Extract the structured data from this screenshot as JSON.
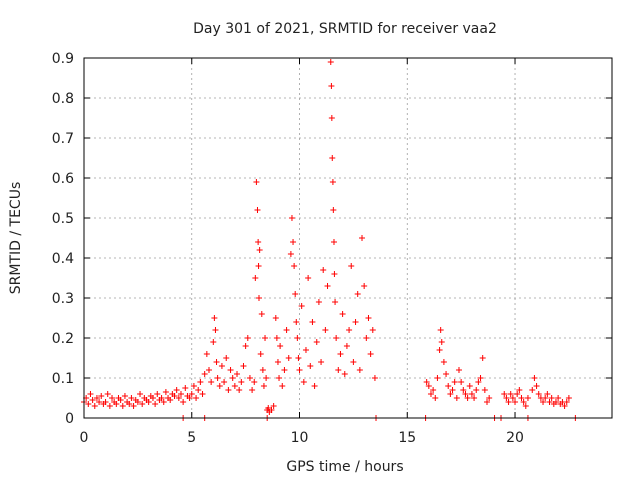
{
  "chart_data": {
    "type": "scatter",
    "title": "Day 301 of 2021, SRMTID for receiver vaa2",
    "xlabel": "GPS time / hours",
    "ylabel": "SRMTID / TECUs",
    "xlim": [
      0,
      24.5
    ],
    "ylim": [
      0,
      0.9
    ],
    "xticks": [
      0,
      5,
      10,
      15,
      20
    ],
    "xtick_labels": [
      "0",
      "5",
      "10",
      "15",
      "20"
    ],
    "yticks": [
      0,
      0.1,
      0.2,
      0.3,
      0.4,
      0.5,
      0.6,
      0.7,
      0.8,
      0.9
    ],
    "ytick_labels": [
      "0",
      "0.1",
      "0.2",
      "0.3",
      "0.4",
      "0.5",
      "0.6",
      "0.7",
      "0.8",
      "0.9"
    ],
    "grid": true,
    "marker": "+",
    "color": "#ff0000",
    "series": [
      {
        "name": "SRMTID",
        "points": [
          [
            0.0,
            0.04
          ],
          [
            0.1,
            0.05
          ],
          [
            0.2,
            0.035
          ],
          [
            0.3,
            0.06
          ],
          [
            0.4,
            0.045
          ],
          [
            0.5,
            0.03
          ],
          [
            0.6,
            0.05
          ],
          [
            0.7,
            0.04
          ],
          [
            0.8,
            0.055
          ],
          [
            0.9,
            0.035
          ],
          [
            1.0,
            0.04
          ],
          [
            1.1,
            0.06
          ],
          [
            1.2,
            0.03
          ],
          [
            1.3,
            0.05
          ],
          [
            1.4,
            0.04
          ],
          [
            1.5,
            0.035
          ],
          [
            1.6,
            0.05
          ],
          [
            1.7,
            0.045
          ],
          [
            1.8,
            0.03
          ],
          [
            1.9,
            0.055
          ],
          [
            2.0,
            0.04
          ],
          [
            2.1,
            0.035
          ],
          [
            2.2,
            0.05
          ],
          [
            2.3,
            0.03
          ],
          [
            2.4,
            0.045
          ],
          [
            2.5,
            0.04
          ],
          [
            2.6,
            0.06
          ],
          [
            2.7,
            0.035
          ],
          [
            2.8,
            0.05
          ],
          [
            2.9,
            0.045
          ],
          [
            3.0,
            0.04
          ],
          [
            3.1,
            0.055
          ],
          [
            3.2,
            0.05
          ],
          [
            3.3,
            0.035
          ],
          [
            3.4,
            0.06
          ],
          [
            3.5,
            0.045
          ],
          [
            3.6,
            0.05
          ],
          [
            3.7,
            0.04
          ],
          [
            3.8,
            0.065
          ],
          [
            3.9,
            0.05
          ],
          [
            4.0,
            0.045
          ],
          [
            4.1,
            0.06
          ],
          [
            4.2,
            0.055
          ],
          [
            4.3,
            0.07
          ],
          [
            4.4,
            0.05
          ],
          [
            4.5,
            0.06
          ],
          [
            4.6,
            0.04
          ],
          [
            4.7,
            0.075
          ],
          [
            4.8,
            0.055
          ],
          [
            4.9,
            0.05
          ],
          [
            5.0,
            0.06
          ],
          [
            5.1,
            0.08
          ],
          [
            5.2,
            0.05
          ],
          [
            5.3,
            0.07
          ],
          [
            5.4,
            0.09
          ],
          [
            5.5,
            0.06
          ],
          [
            5.6,
            0.11
          ],
          [
            5.7,
            0.16
          ],
          [
            5.8,
            0.12
          ],
          [
            5.9,
            0.09
          ],
          [
            6.0,
            0.19
          ],
          [
            6.05,
            0.25
          ],
          [
            6.1,
            0.22
          ],
          [
            6.15,
            0.14
          ],
          [
            6.2,
            0.1
          ],
          [
            6.3,
            0.08
          ],
          [
            6.4,
            0.13
          ],
          [
            6.5,
            0.09
          ],
          [
            6.6,
            0.15
          ],
          [
            6.7,
            0.07
          ],
          [
            6.8,
            0.12
          ],
          [
            6.9,
            0.1
          ],
          [
            7.0,
            0.08
          ],
          [
            7.1,
            0.11
          ],
          [
            7.2,
            0.07
          ],
          [
            7.3,
            0.09
          ],
          [
            7.4,
            0.13
          ],
          [
            7.5,
            0.18
          ],
          [
            7.6,
            0.2
          ],
          [
            7.7,
            0.1
          ],
          [
            7.8,
            0.07
          ],
          [
            7.9,
            0.09
          ],
          [
            7.95,
            0.35
          ],
          [
            8.0,
            0.59
          ],
          [
            8.05,
            0.52
          ],
          [
            8.08,
            0.44
          ],
          [
            8.1,
            0.38
          ],
          [
            8.12,
            0.3
          ],
          [
            8.15,
            0.42
          ],
          [
            8.2,
            0.16
          ],
          [
            8.25,
            0.26
          ],
          [
            8.3,
            0.12
          ],
          [
            8.35,
            0.08
          ],
          [
            8.4,
            0.2
          ],
          [
            8.45,
            0.1
          ],
          [
            8.5,
            0.02
          ],
          [
            8.55,
            0.025
          ],
          [
            8.6,
            0.015
          ],
          [
            8.7,
            0.02
          ],
          [
            8.8,
            0.03
          ],
          [
            8.9,
            0.25
          ],
          [
            8.95,
            0.2
          ],
          [
            9.0,
            0.14
          ],
          [
            9.05,
            0.1
          ],
          [
            9.1,
            0.18
          ],
          [
            9.2,
            0.08
          ],
          [
            9.3,
            0.12
          ],
          [
            9.4,
            0.22
          ],
          [
            9.5,
            0.15
          ],
          [
            9.6,
            0.41
          ],
          [
            9.65,
            0.5
          ],
          [
            9.7,
            0.44
          ],
          [
            9.75,
            0.38
          ],
          [
            9.8,
            0.31
          ],
          [
            9.85,
            0.24
          ],
          [
            9.9,
            0.2
          ],
          [
            9.95,
            0.15
          ],
          [
            10.0,
            0.12
          ],
          [
            10.1,
            0.28
          ],
          [
            10.2,
            0.09
          ],
          [
            10.3,
            0.17
          ],
          [
            10.4,
            0.35
          ],
          [
            10.5,
            0.13
          ],
          [
            10.6,
            0.24
          ],
          [
            10.7,
            0.08
          ],
          [
            10.8,
            0.19
          ],
          [
            10.9,
            0.29
          ],
          [
            11.0,
            0.14
          ],
          [
            11.1,
            0.37
          ],
          [
            11.2,
            0.22
          ],
          [
            11.3,
            0.33
          ],
          [
            11.45,
            0.89
          ],
          [
            11.48,
            0.83
          ],
          [
            11.5,
            0.75
          ],
          [
            11.52,
            0.65
          ],
          [
            11.55,
            0.59
          ],
          [
            11.57,
            0.52
          ],
          [
            11.6,
            0.44
          ],
          [
            11.62,
            0.36
          ],
          [
            11.65,
            0.29
          ],
          [
            11.7,
            0.2
          ],
          [
            11.8,
            0.12
          ],
          [
            11.9,
            0.16
          ],
          [
            12.0,
            0.26
          ],
          [
            12.1,
            0.11
          ],
          [
            12.2,
            0.18
          ],
          [
            12.3,
            0.22
          ],
          [
            12.4,
            0.38
          ],
          [
            12.5,
            0.14
          ],
          [
            12.6,
            0.24
          ],
          [
            12.7,
            0.31
          ],
          [
            12.8,
            0.12
          ],
          [
            12.9,
            0.45
          ],
          [
            13.0,
            0.33
          ],
          [
            13.1,
            0.2
          ],
          [
            13.2,
            0.25
          ],
          [
            13.3,
            0.16
          ],
          [
            13.4,
            0.22
          ],
          [
            13.5,
            0.1
          ],
          [
            15.9,
            0.09
          ],
          [
            16.0,
            0.08
          ],
          [
            16.1,
            0.06
          ],
          [
            16.2,
            0.07
          ],
          [
            16.3,
            0.05
          ],
          [
            16.4,
            0.1
          ],
          [
            16.5,
            0.17
          ],
          [
            16.55,
            0.22
          ],
          [
            16.6,
            0.19
          ],
          [
            16.7,
            0.14
          ],
          [
            16.8,
            0.11
          ],
          [
            16.9,
            0.08
          ],
          [
            17.0,
            0.06
          ],
          [
            17.1,
            0.07
          ],
          [
            17.2,
            0.09
          ],
          [
            17.3,
            0.05
          ],
          [
            17.4,
            0.12
          ],
          [
            17.5,
            0.09
          ],
          [
            17.6,
            0.07
          ],
          [
            17.7,
            0.06
          ],
          [
            17.8,
            0.05
          ],
          [
            17.9,
            0.08
          ],
          [
            18.0,
            0.06
          ],
          [
            18.1,
            0.05
          ],
          [
            18.2,
            0.07
          ],
          [
            18.3,
            0.09
          ],
          [
            18.4,
            0.1
          ],
          [
            18.5,
            0.15
          ],
          [
            18.6,
            0.07
          ],
          [
            18.7,
            0.04
          ],
          [
            18.8,
            0.05
          ],
          [
            19.5,
            0.06
          ],
          [
            19.6,
            0.05
          ],
          [
            19.7,
            0.04
          ],
          [
            19.8,
            0.06
          ],
          [
            19.9,
            0.05
          ],
          [
            20.0,
            0.04
          ],
          [
            20.1,
            0.06
          ],
          [
            20.2,
            0.07
          ],
          [
            20.3,
            0.05
          ],
          [
            20.4,
            0.04
          ],
          [
            20.5,
            0.03
          ],
          [
            20.6,
            0.05
          ],
          [
            20.8,
            0.07
          ],
          [
            20.9,
            0.1
          ],
          [
            21.0,
            0.08
          ],
          [
            21.1,
            0.06
          ],
          [
            21.2,
            0.05
          ],
          [
            21.3,
            0.04
          ],
          [
            21.4,
            0.05
          ],
          [
            21.5,
            0.06
          ],
          [
            21.6,
            0.04
          ],
          [
            21.7,
            0.05
          ],
          [
            21.8,
            0.035
          ],
          [
            21.9,
            0.04
          ],
          [
            22.0,
            0.05
          ],
          [
            22.1,
            0.035
          ],
          [
            22.2,
            0.04
          ],
          [
            22.3,
            0.03
          ],
          [
            22.4,
            0.04
          ],
          [
            22.5,
            0.05
          ],
          [
            4.6,
            0.0
          ],
          [
            5.6,
            0.0
          ],
          [
            8.5,
            0.0
          ],
          [
            13.55,
            0.0
          ],
          [
            15.85,
            0.0
          ],
          [
            19.05,
            0.0
          ],
          [
            19.35,
            0.0
          ],
          [
            20.6,
            0.0
          ],
          [
            22.8,
            0.0
          ]
        ]
      }
    ]
  }
}
